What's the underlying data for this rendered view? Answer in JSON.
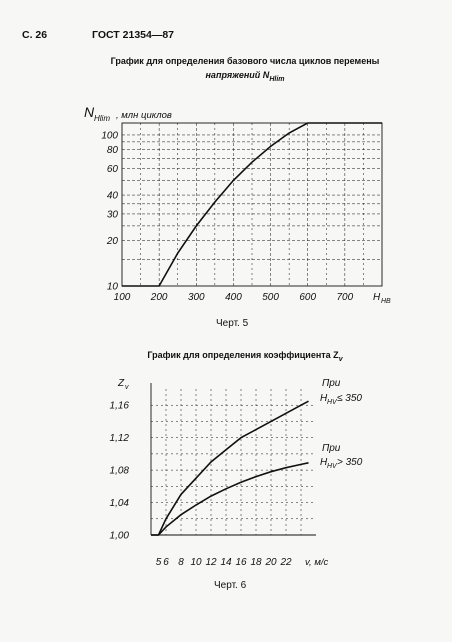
{
  "header": {
    "page_number": "С. 26",
    "standard": "ГОСТ 21354—87"
  },
  "figure5": {
    "title_line1": "График для определения базового числа циклов перемены",
    "title_line2": "напряжений N",
    "title_sub": "Hlim",
    "caption": "Черт. 5",
    "chart_data": {
      "type": "line",
      "ylabel_main": "N",
      "ylabel_sub": "Hlim",
      "ylabel_unit": ", млн циклов",
      "xlabel_main": "H",
      "xlabel_sub": "HB",
      "xlim": [
        100,
        800
      ],
      "ylim": [
        10,
        120
      ],
      "y_scale": "log",
      "x_ticks": [
        "100",
        "200",
        "300",
        "400",
        "500",
        "600",
        "700"
      ],
      "y_ticks": [
        "10",
        "20",
        "30",
        "40",
        "60",
        "80",
        "100"
      ],
      "series": [
        {
          "x": [
            100,
            200,
            250,
            300,
            350,
            400,
            450,
            500,
            550,
            600,
            800
          ],
          "y": [
            10,
            10,
            16.5,
            25,
            36,
            50,
            66,
            84,
            103,
            120,
            120
          ]
        }
      ],
      "grid": true
    }
  },
  "figure6": {
    "title": "График для определения коэффициента Z",
    "title_sub": "v",
    "caption": "Черт. 6",
    "chart_data": {
      "type": "line",
      "ylabel_main": "Z",
      "ylabel_sub": "v",
      "xlabel": "v, м/с",
      "xlim": [
        4,
        26
      ],
      "ylim": [
        1.0,
        1.18
      ],
      "x_ticks": [
        "5",
        "6",
        "8",
        "10",
        "12",
        "14",
        "16",
        "18",
        "20",
        "22"
      ],
      "y_ticks": [
        "1,00",
        "1,04",
        "1,08",
        "1,12",
        "1,16"
      ],
      "series": [
        {
          "label_line1": "При",
          "label_main": "H",
          "label_sub": "HV",
          "label_rest": " ≤ 350",
          "x": [
            4,
            5,
            6,
            8,
            10,
            12,
            14,
            16,
            18,
            20,
            22,
            24,
            25
          ],
          "y": [
            1.0,
            1.0,
            1.02,
            1.05,
            1.07,
            1.09,
            1.105,
            1.12,
            1.13,
            1.14,
            1.15,
            1.16,
            1.165
          ]
        },
        {
          "label_line1": "При",
          "label_main": "H",
          "label_sub": "HV",
          "label_rest": " > 350",
          "x": [
            4,
            5,
            6,
            8,
            10,
            12,
            14,
            16,
            18,
            20,
            22,
            24,
            25
          ],
          "y": [
            1.0,
            1.0,
            1.01,
            1.025,
            1.037,
            1.048,
            1.057,
            1.065,
            1.072,
            1.078,
            1.083,
            1.087,
            1.089
          ]
        }
      ],
      "grid": true
    }
  }
}
